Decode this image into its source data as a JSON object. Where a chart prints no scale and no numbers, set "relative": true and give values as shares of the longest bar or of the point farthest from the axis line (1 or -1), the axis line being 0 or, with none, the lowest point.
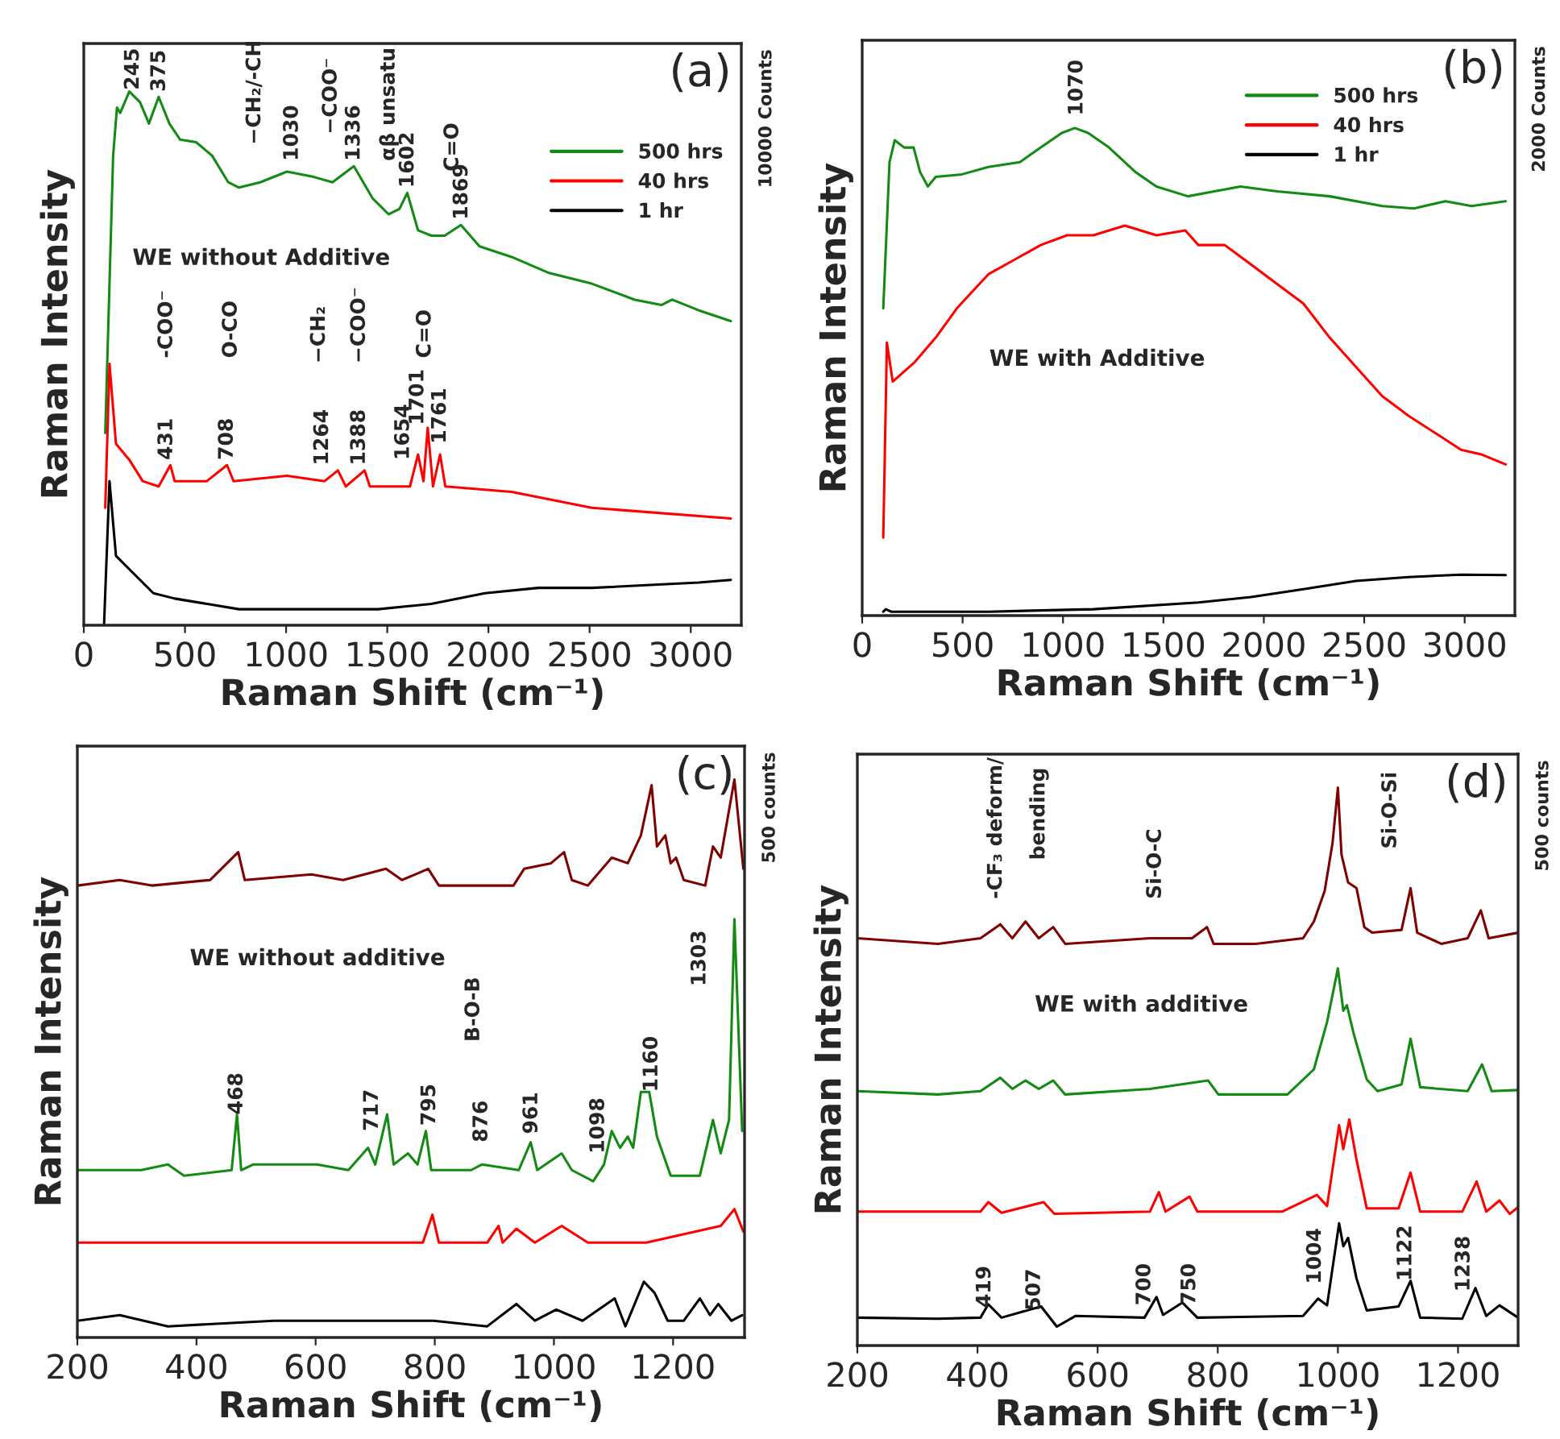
{
  "chart_data": [
    {
      "type": "line",
      "relative": true,
      "xlabel": "Raman Shift (cm⁻¹)",
      "ylabel": "Raman Intensity",
      "xlim": [
        0,
        3250
      ],
      "xticks": [
        0,
        500,
        1000,
        1500,
        2000,
        2500,
        3000
      ],
      "legend": "top right",
      "grid": false,
      "series": [
        {
          "name": "500 hrs",
          "color": "#138a13",
          "x": [
            106,
            145,
            164,
            180,
            225,
            278,
            322,
            370,
            423,
            476,
            555,
            634,
            714,
            767,
            872,
            1004,
            1137,
            1229,
            1335,
            1427,
            1507,
            1560,
            1599,
            1652,
            1718,
            1784,
            1864,
            1956,
            2115,
            2300,
            2511,
            2723,
            2855,
            2908,
            3040,
            3198
          ],
          "values": [
            0.36,
            0.88,
            0.97,
            0.96,
            1.0,
            0.98,
            0.94,
            0.99,
            0.94,
            0.91,
            0.905,
            0.88,
            0.83,
            0.82,
            0.83,
            0.85,
            0.84,
            0.83,
            0.86,
            0.8,
            0.77,
            0.78,
            0.81,
            0.74,
            0.73,
            0.73,
            0.75,
            0.71,
            0.69,
            0.66,
            0.64,
            0.61,
            0.6,
            0.61,
            0.59,
            0.57
          ]
        },
        {
          "name": "40 hrs",
          "color": "#ff0000",
          "x": [
            106,
            127,
            159,
            225,
            291,
            370,
            428,
            449,
            608,
            708,
            740,
            1004,
            1190,
            1256,
            1295,
            1388,
            1414,
            1612,
            1652,
            1679,
            1700,
            1726,
            1761,
            1787,
            2115,
            2511,
            3198
          ],
          "values": [
            0.22,
            0.49,
            0.34,
            0.31,
            0.27,
            0.26,
            0.3,
            0.27,
            0.27,
            0.3,
            0.27,
            0.28,
            0.27,
            0.29,
            0.26,
            0.29,
            0.26,
            0.26,
            0.32,
            0.27,
            0.37,
            0.26,
            0.32,
            0.26,
            0.25,
            0.22,
            0.2
          ]
        },
        {
          "name": "1 hr",
          "color": "#000000",
          "x": [
            100,
            127,
            159,
            238,
            344,
            449,
            767,
            1454,
            1718,
            1983,
            2247,
            2511,
            3040,
            3198
          ],
          "values": [
            0.0,
            0.27,
            0.13,
            0.1,
            0.06,
            0.05,
            0.03,
            0.03,
            0.04,
            0.06,
            0.07,
            0.07,
            0.08,
            0.085
          ]
        }
      ],
      "annotations": [
        "WE without Additive",
        "(a)",
        "10000 Counts",
        "245",
        "375",
        "−CH₂/-CH",
        "1030",
        "−COO⁻",
        "1336",
        "αβ unsatu",
        "1602",
        "C=O",
        "1869",
        "-COO⁻",
        "431",
        "O-CO",
        "708",
        "−CH₂",
        "1264",
        "−COO⁻",
        "1388",
        "C=O",
        "1654",
        "1701",
        "1761"
      ]
    },
    {
      "type": "line",
      "relative": true,
      "xlabel": "Raman Shift (cm⁻¹)",
      "ylabel": "Raman Intensity",
      "xlim": [
        0,
        3250
      ],
      "xticks": [
        0,
        500,
        1000,
        1500,
        2000,
        2500,
        3000
      ],
      "legend": "top right",
      "grid": false,
      "series": [
        {
          "name": "500 hrs",
          "color": "#138a13",
          "x": [
            105,
            136,
            162,
            209,
            256,
            288,
            327,
            366,
            497,
            628,
            785,
            889,
            994,
            1059,
            1125,
            1229,
            1360,
            1465,
            1622,
            1753,
            1883,
            2066,
            2328,
            2590,
            2747,
            2904,
            3034,
            3204
          ],
          "values": [
            0.63,
            0.93,
            0.975,
            0.96,
            0.96,
            0.91,
            0.88,
            0.9,
            0.905,
            0.92,
            0.93,
            0.96,
            0.99,
            1.0,
            0.99,
            0.96,
            0.91,
            0.88,
            0.86,
            0.87,
            0.88,
            0.87,
            0.86,
            0.84,
            0.835,
            0.85,
            0.84,
            0.85
          ]
        },
        {
          "name": "40 hrs",
          "color": "#ff0000",
          "x": [
            105,
            123,
            152,
            262,
            366,
            471,
            628,
            759,
            889,
            1020,
            1151,
            1308,
            1465,
            1609,
            1674,
            1805,
            1936,
            2066,
            2197,
            2328,
            2459,
            2590,
            2720,
            2851,
            2982,
            3087,
            3204
          ],
          "values": [
            0.16,
            0.56,
            0.48,
            0.52,
            0.57,
            0.63,
            0.7,
            0.73,
            0.76,
            0.78,
            0.78,
            0.8,
            0.78,
            0.79,
            0.76,
            0.76,
            0.72,
            0.68,
            0.64,
            0.57,
            0.51,
            0.45,
            0.41,
            0.375,
            0.34,
            0.33,
            0.31
          ]
        },
        {
          "name": "1 hr",
          "color": "#000000",
          "x": [
            105,
            118,
            144,
            628,
            1151,
            1674,
            1936,
            2197,
            2459,
            2720,
            2982,
            3204
          ],
          "values": [
            0.008,
            0.013,
            0.008,
            0.008,
            0.013,
            0.027,
            0.038,
            0.054,
            0.071,
            0.079,
            0.084,
            0.083
          ]
        }
      ],
      "annotations": [
        "WE with Additive",
        "(b)",
        "2000 Counts",
        "1070"
      ]
    },
    {
      "type": "line",
      "relative": true,
      "xlabel": "Raman Shift (cm⁻¹)",
      "ylabel": "Raman Intensity",
      "xlim": [
        200,
        1320
      ],
      "xticks": [
        200,
        400,
        600,
        800,
        1000,
        1200
      ],
      "grid": false,
      "series": [
        {
          "color": "#800000",
          "x": [
            200,
            271,
            325,
            423,
            470,
            481,
            593,
            646,
            718,
            745,
            789,
            807,
            888,
            932,
            950,
            995,
            1017,
            1030,
            1057,
            1097,
            1124,
            1146,
            1164,
            1173,
            1187,
            1196,
            1205,
            1218,
            1254,
            1267,
            1280,
            1303,
            1318
          ],
          "values": [
            0.81,
            0.82,
            0.81,
            0.82,
            0.87,
            0.82,
            0.83,
            0.82,
            0.84,
            0.82,
            0.84,
            0.81,
            0.81,
            0.81,
            0.84,
            0.85,
            0.87,
            0.82,
            0.81,
            0.86,
            0.85,
            0.9,
            0.99,
            0.88,
            0.9,
            0.85,
            0.86,
            0.82,
            0.81,
            0.88,
            0.86,
            1.0,
            0.84
          ]
        },
        {
          "color": "#138a13",
          "x": [
            200,
            307,
            352,
            379,
            459,
            468,
            475,
            495,
            602,
            655,
            688,
            700,
            720,
            731,
            755,
            771,
            785,
            794,
            861,
            879,
            941,
            961,
            972,
            1013,
            1030,
            1066,
            1084,
            1097,
            1111,
            1124,
            1133,
            1146,
            1160,
            1173,
            1196,
            1245,
            1267,
            1280,
            1294,
            1303,
            1316
          ],
          "values": [
            0.3,
            0.3,
            0.31,
            0.29,
            0.3,
            0.4,
            0.3,
            0.31,
            0.31,
            0.3,
            0.34,
            0.31,
            0.4,
            0.31,
            0.33,
            0.31,
            0.37,
            0.3,
            0.3,
            0.31,
            0.3,
            0.35,
            0.3,
            0.33,
            0.3,
            0.28,
            0.31,
            0.37,
            0.34,
            0.36,
            0.34,
            0.44,
            0.44,
            0.36,
            0.29,
            0.29,
            0.39,
            0.33,
            0.39,
            0.75,
            0.37
          ]
        },
        {
          "color": "#ff0000",
          "x": [
            200,
            441,
            709,
            780,
            796,
            807,
            888,
            907,
            914,
            937,
            968,
            1013,
            1057,
            1155,
            1280,
            1303,
            1318
          ],
          "values": [
            0.17,
            0.17,
            0.17,
            0.17,
            0.22,
            0.17,
            0.17,
            0.2,
            0.17,
            0.195,
            0.17,
            0.2,
            0.17,
            0.17,
            0.2,
            0.23,
            0.19
          ]
        },
        {
          "color": "#000000",
          "x": [
            200,
            271,
            352,
            530,
            798,
            888,
            937,
            968,
            1004,
            1048,
            1102,
            1120,
            1151,
            1169,
            1191,
            1218,
            1245,
            1262,
            1276,
            1298,
            1316
          ],
          "values": [
            0.03,
            0.04,
            0.02,
            0.03,
            0.03,
            0.02,
            0.06,
            0.03,
            0.05,
            0.03,
            0.07,
            0.02,
            0.1,
            0.08,
            0.03,
            0.03,
            0.07,
            0.04,
            0.06,
            0.03,
            0.04
          ]
        }
      ],
      "annotations": [
        "WE without additive",
        "(c)",
        "500 counts",
        "468",
        "717",
        "795",
        "876",
        "961",
        "1098",
        "1160",
        "1303",
        "B-O-B"
      ]
    },
    {
      "type": "line",
      "relative": true,
      "xlabel": "Raman Shift (cm⁻¹)",
      "ylabel": "Raman Intensity",
      "xlim": [
        200,
        1300
      ],
      "xticks": [
        200,
        400,
        600,
        800,
        1000,
        1200
      ],
      "grid": false,
      "series": [
        {
          "color": "#800000",
          "x": [
            200,
            334,
            405,
            438,
            458,
            480,
            502,
            526,
            546,
            687,
            757,
            782,
            793,
            863,
            942,
            960,
            978,
            991,
            1000,
            1006,
            1017,
            1031,
            1044,
            1057,
            1106,
            1121,
            1132,
            1172,
            1216,
            1238,
            1251,
            1300
          ],
          "values": [
            0.73,
            0.72,
            0.73,
            0.755,
            0.73,
            0.76,
            0.73,
            0.75,
            0.72,
            0.73,
            0.73,
            0.75,
            0.72,
            0.72,
            0.73,
            0.76,
            0.815,
            0.9,
            1.0,
            0.88,
            0.83,
            0.82,
            0.75,
            0.74,
            0.745,
            0.82,
            0.74,
            0.72,
            0.73,
            0.78,
            0.73,
            0.74
          ]
        },
        {
          "color": "#138a13",
          "x": [
            200,
            334,
            405,
            438,
            458,
            480,
            502,
            526,
            546,
            687,
            784,
            801,
            916,
            960,
            982,
            1000,
            1009,
            1015,
            1026,
            1048,
            1066,
            1106,
            1121,
            1137,
            1216,
            1240,
            1256,
            1300
          ],
          "values": [
            0.456,
            0.45,
            0.456,
            0.48,
            0.46,
            0.475,
            0.46,
            0.475,
            0.45,
            0.46,
            0.475,
            0.45,
            0.45,
            0.495,
            0.58,
            0.676,
            0.6,
            0.61,
            0.56,
            0.477,
            0.456,
            0.468,
            0.55,
            0.463,
            0.456,
            0.504,
            0.456,
            0.458
          ]
        },
        {
          "color": "#ff0000",
          "x": [
            200,
            405,
            418,
            440,
            510,
            528,
            687,
            702,
            713,
            753,
            766,
            907,
            965,
            982,
            1002,
            1009,
            1019,
            1031,
            1048,
            1101,
            1121,
            1137,
            1207,
            1231,
            1247,
            1269,
            1286,
            1300
          ],
          "values": [
            0.24,
            0.24,
            0.257,
            0.238,
            0.257,
            0.236,
            0.24,
            0.275,
            0.24,
            0.267,
            0.24,
            0.24,
            0.27,
            0.25,
            0.395,
            0.352,
            0.405,
            0.333,
            0.246,
            0.246,
            0.31,
            0.24,
            0.24,
            0.294,
            0.24,
            0.26,
            0.236,
            0.248
          ]
        },
        {
          "color": "#000000",
          "x": [
            200,
            334,
            405,
            418,
            440,
            506,
            532,
            563,
            678,
            698,
            709,
            741,
            766,
            942,
            967,
            982,
            1002,
            1009,
            1017,
            1031,
            1048,
            1101,
            1121,
            1137,
            1207,
            1229,
            1247,
            1269,
            1300
          ],
          "values": [
            0.05,
            0.048,
            0.05,
            0.074,
            0.05,
            0.07,
            0.034,
            0.053,
            0.05,
            0.087,
            0.055,
            0.077,
            0.05,
            0.053,
            0.084,
            0.072,
            0.219,
            0.178,
            0.193,
            0.12,
            0.063,
            0.07,
            0.116,
            0.05,
            0.048,
            0.103,
            0.053,
            0.072,
            0.05
          ]
        }
      ],
      "annotations": [
        "WE with additive",
        "(d)",
        "500 counts",
        "419",
        "507",
        "700",
        "750",
        "1004",
        "1122",
        "1238",
        "-CF₃ deform/",
        "bending",
        "Si-O-C",
        "Si-O-Si"
      ]
    }
  ]
}
